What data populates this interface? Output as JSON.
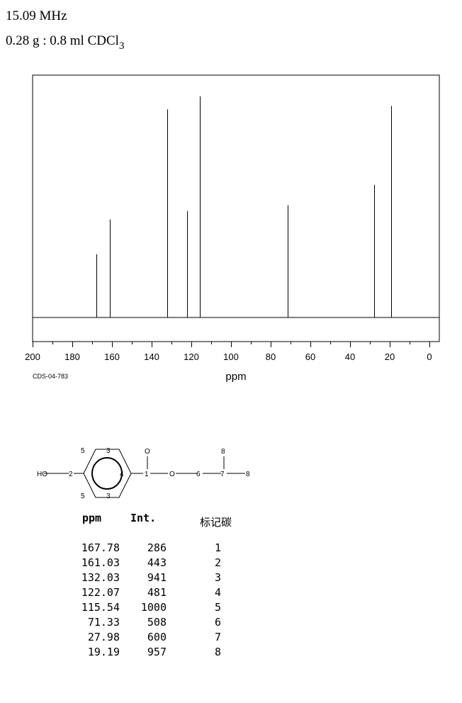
{
  "header": {
    "frequency": "15.09 MHz",
    "sample_main": "0.28 g : 0.8 ml CDCl",
    "sample_sub": "3"
  },
  "chart_data": {
    "type": "line",
    "title": "",
    "xlabel": "ppm",
    "ylabel": "",
    "xlim": [
      200,
      0
    ],
    "x_ticks": [
      200,
      180,
      160,
      140,
      120,
      100,
      80,
      60,
      40,
      20,
      0
    ],
    "x_tick_labels": [
      "200",
      "180",
      "160",
      "140",
      "120",
      "100",
      "80",
      "60",
      "40",
      "20",
      "0"
    ],
    "ylim": [
      0,
      1000
    ],
    "grid": false,
    "peaks": [
      {
        "ppm": 167.78,
        "intensity": 286
      },
      {
        "ppm": 161.03,
        "intensity": 443
      },
      {
        "ppm": 132.03,
        "intensity": 941
      },
      {
        "ppm": 122.07,
        "intensity": 481
      },
      {
        "ppm": 115.54,
        "intensity": 1000
      },
      {
        "ppm": 71.33,
        "intensity": 508
      },
      {
        "ppm": 27.98,
        "intensity": 600
      },
      {
        "ppm": 19.19,
        "intensity": 957
      }
    ],
    "annotation": "CDS-04-783"
  },
  "structure": {
    "labels": [
      "HO",
      "2",
      "5",
      "3",
      "5",
      "3",
      "4",
      "1",
      "O",
      "O",
      "6",
      "7",
      "8",
      "8"
    ]
  },
  "table": {
    "headers": {
      "ppm": "ppm",
      "int": "Int.",
      "assign": "标记碳"
    },
    "rows": [
      {
        "ppm": "167.78",
        "int": "286",
        "assign": "1"
      },
      {
        "ppm": "161.03",
        "int": "443",
        "assign": "2"
      },
      {
        "ppm": "132.03",
        "int": "941",
        "assign": "3"
      },
      {
        "ppm": "122.07",
        "int": "481",
        "assign": "4"
      },
      {
        "ppm": "115.54",
        "int": "1000",
        "assign": "5"
      },
      {
        "ppm": "71.33",
        "int": "508",
        "assign": "6"
      },
      {
        "ppm": "27.98",
        "int": "600",
        "assign": "7"
      },
      {
        "ppm": "19.19",
        "int": "957",
        "assign": "8"
      }
    ]
  }
}
